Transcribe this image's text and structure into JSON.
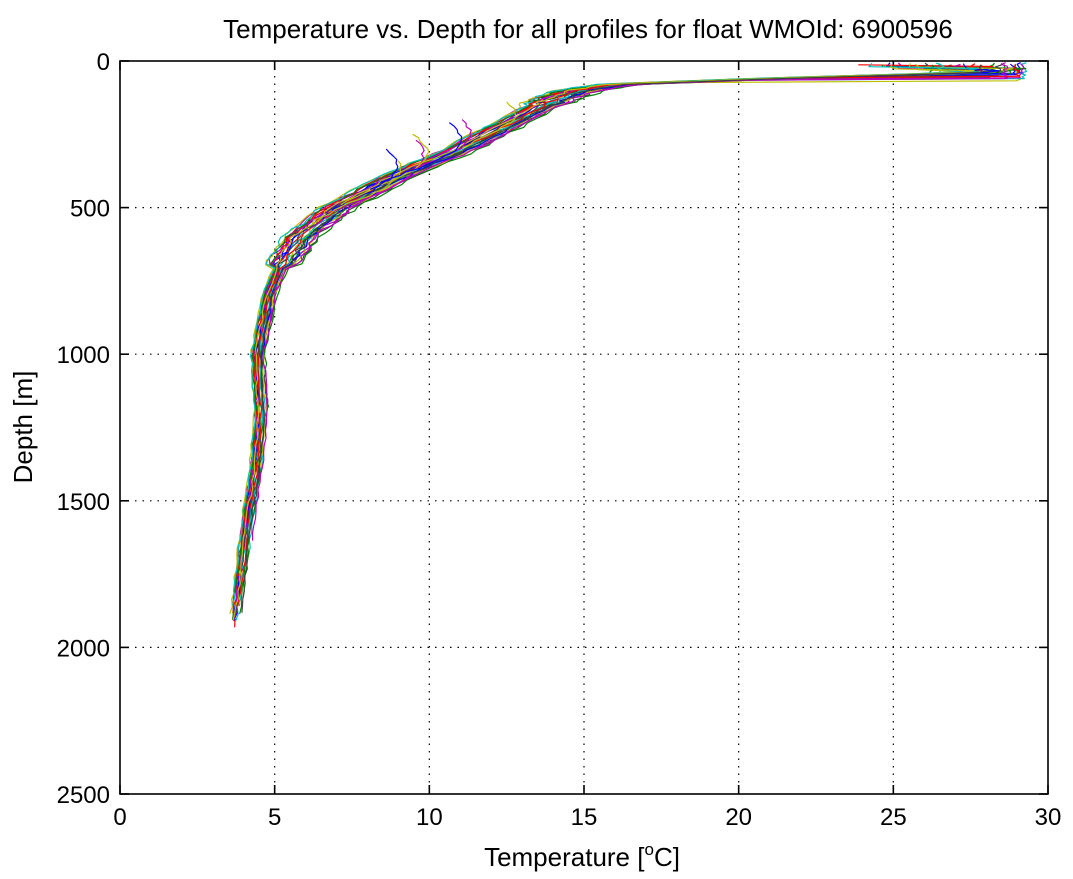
{
  "chart_data": {
    "type": "line",
    "title": "Temperature vs. Depth for all profiles for float WMOId: 6900596",
    "xlabel_main": "Temperature [",
    "xlabel_sup": "o",
    "xlabel_tail": "C]",
    "ylabel": "Depth [m]",
    "xlim": [
      0,
      30
    ],
    "ylim": [
      0,
      2500
    ],
    "y_reversed": true,
    "grid": true,
    "x_ticks": [
      {
        "value": 0,
        "label": "0"
      },
      {
        "value": 5,
        "label": "5"
      },
      {
        "value": 10,
        "label": "10"
      },
      {
        "value": 15,
        "label": "15"
      },
      {
        "value": 20,
        "label": "20"
      },
      {
        "value": 25,
        "label": "25"
      },
      {
        "value": 30,
        "label": "30"
      }
    ],
    "y_ticks": [
      {
        "value": 0,
        "label": "0"
      },
      {
        "value": 500,
        "label": "500"
      },
      {
        "value": 1000,
        "label": "1000"
      },
      {
        "value": 1500,
        "label": "1500"
      },
      {
        "value": 2000,
        "label": "2000"
      },
      {
        "value": 2500,
        "label": "2500"
      }
    ],
    "profile_colors": [
      "#0000ff",
      "#008000",
      "#ff0000",
      "#00bfbf",
      "#bf00bf",
      "#bfbf00",
      "#404040"
    ],
    "reference_profile": {
      "depth": [
        5,
        20,
        40,
        60,
        80,
        100,
        130,
        200,
        300,
        400,
        500,
        600,
        700,
        800,
        1000,
        1200,
        1400,
        1600,
        1800,
        1920
      ],
      "temperature": [
        28.8,
        28.6,
        27.5,
        21.0,
        16.0,
        14.8,
        14.0,
        12.8,
        11.0,
        8.8,
        7.0,
        5.8,
        5.2,
        4.8,
        4.45,
        4.55,
        4.4,
        4.1,
        3.9,
        3.75
      ]
    },
    "profiles": [
      {
        "offset": -0.3,
        "maxDepth": 1920,
        "surfaceTemp": 29.1,
        "mldDepth": 45
      },
      {
        "offset": 0.2,
        "maxDepth": 1900,
        "surfaceTemp": 28.7,
        "mldDepth": 60
      },
      {
        "offset": -0.1,
        "maxDepth": 1940,
        "surfaceTemp": 27.9,
        "mldDepth": 35
      },
      {
        "offset": 0.4,
        "maxDepth": 1700,
        "surfaceTemp": 26.4,
        "mldDepth": 40
      },
      {
        "offset": -0.5,
        "maxDepth": 1880,
        "surfaceTemp": 25.2,
        "mldDepth": 30
      },
      {
        "offset": 0.1,
        "maxDepth": 1500,
        "surfaceTemp": 29.0,
        "mldDepth": 70
      },
      {
        "offset": 0.6,
        "maxDepth": 1300,
        "surfaceTemp": 26.8,
        "mldDepth": 25
      },
      {
        "offset": -0.2,
        "maxDepth": 1910,
        "surfaceTemp": 24.9,
        "mldDepth": 20
      },
      {
        "offset": 0.3,
        "maxDepth": 1850,
        "surfaceTemp": 28.2,
        "mldDepth": 55
      },
      {
        "offset": -0.4,
        "maxDepth": 1760,
        "surfaceTemp": 23.8,
        "mldDepth": 15
      },
      {
        "offset": 0.0,
        "maxDepth": 1920,
        "surfaceTemp": 29.2,
        "mldDepth": 65
      },
      {
        "offset": 0.5,
        "maxDepth": 950,
        "surfaceTemp": 27.1,
        "mldDepth": 45
      },
      {
        "offset": -0.6,
        "maxDepth": 1900,
        "surfaceTemp": 25.8,
        "mldDepth": 35
      },
      {
        "offset": 0.25,
        "maxDepth": 1600,
        "surfaceTemp": 26.0,
        "mldDepth": 30
      },
      {
        "offset": -0.15,
        "maxDepth": 1930,
        "surfaceTemp": 28.9,
        "mldDepth": 50
      },
      {
        "offset": 0.7,
        "maxDepth": 1200,
        "surfaceTemp": 24.6,
        "mldDepth": 20
      },
      {
        "offset": -0.35,
        "maxDepth": 1890,
        "surfaceTemp": 27.6,
        "mldDepth": 40
      },
      {
        "offset": 0.15,
        "maxDepth": 1780,
        "surfaceTemp": 26.5,
        "mldDepth": 35
      },
      {
        "offset": -0.25,
        "maxDepth": 1920,
        "surfaceTemp": 29.1,
        "mldDepth": 60
      },
      {
        "offset": 0.45,
        "maxDepth": 1400,
        "surfaceTemp": 25.5,
        "mldDepth": 25
      },
      {
        "offset": -0.05,
        "maxDepth": 1900,
        "surfaceTemp": 28.4,
        "mldDepth": 50
      },
      {
        "offset": 0.35,
        "maxDepth": 1050,
        "surfaceTemp": 27.3,
        "mldDepth": 30
      },
      {
        "offset": -0.45,
        "maxDepth": 1910,
        "surfaceTemp": 26.2,
        "mldDepth": 45
      },
      {
        "offset": 0.05,
        "maxDepth": 1880,
        "surfaceTemp": 29.0,
        "mldDepth": 55
      },
      {
        "offset": -0.55,
        "maxDepth": 1860,
        "surfaceTemp": 24.2,
        "mldDepth": 20
      },
      {
        "offset": 0.55,
        "maxDepth": 1650,
        "surfaceTemp": 28.6,
        "mldDepth": 65
      },
      {
        "offset": -0.2,
        "maxDepth": 1930,
        "surfaceTemp": 25.0,
        "mldDepth": 30
      },
      {
        "offset": 0.3,
        "maxDepth": 1900,
        "surfaceTemp": 27.8,
        "mldDepth": 40
      }
    ],
    "partial_profiles": [
      {
        "shallowTemp": 9.6,
        "shallowDepth": 270,
        "joinDepth": 520,
        "color": "#bf00bf"
      },
      {
        "shallowTemp": 8.6,
        "shallowDepth": 300,
        "joinDepth": 480,
        "color": "#0000ff"
      },
      {
        "shallowTemp": 9.0,
        "shallowDepth": 340,
        "joinDepth": 500,
        "color": "#bfbf00"
      },
      {
        "shallowTemp": 11.0,
        "shallowDepth": 200,
        "joinDepth": 330,
        "color": "#bf00bf"
      },
      {
        "shallowTemp": 9.5,
        "shallowDepth": 250,
        "joinDepth": 430,
        "color": "#bfbf00"
      },
      {
        "shallowTemp": 12.5,
        "shallowDepth": 140,
        "joinDepth": 240,
        "color": "#bfbf00"
      },
      {
        "shallowTemp": 10.7,
        "shallowDepth": 210,
        "joinDepth": 380,
        "color": "#0000ff"
      }
    ]
  }
}
